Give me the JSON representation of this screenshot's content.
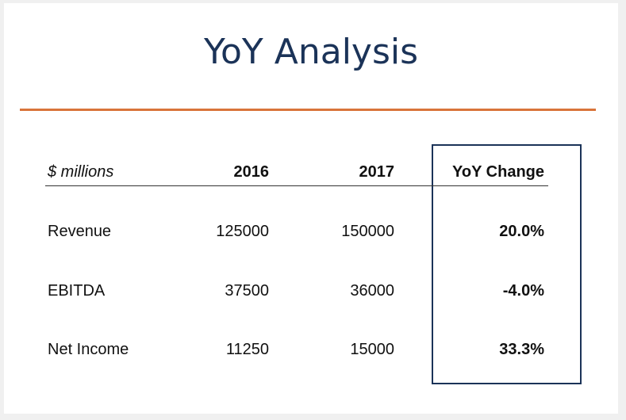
{
  "slide": {
    "title": "YoY Analysis"
  },
  "table": {
    "header": {
      "units": "$ millions",
      "col_2016": "2016",
      "col_2017": "2017",
      "col_yoy": "YoY Change"
    },
    "rows": [
      {
        "label": "Revenue",
        "v2016": "125000",
        "v2017": "150000",
        "yoy": "20.0%"
      },
      {
        "label": "EBITDA",
        "v2016": "37500",
        "v2017": "36000",
        "yoy": "-4.0%"
      },
      {
        "label": "Net Income",
        "v2016": "11250",
        "v2017": "15000",
        "yoy": "33.3%"
      }
    ]
  },
  "colors": {
    "title": "#1b3358",
    "accent_rule": "#d9743a",
    "highlight_border": "#1b3358"
  }
}
